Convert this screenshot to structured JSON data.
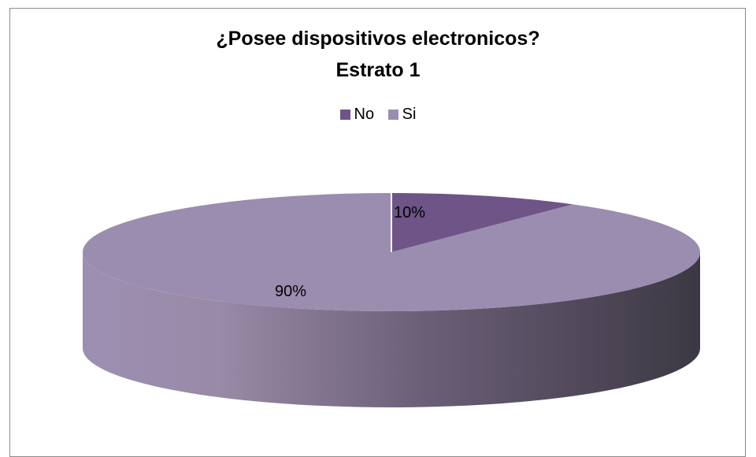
{
  "chart_data": {
    "type": "pie",
    "title": "¿Posee dispositivos electronicos?",
    "subtitle": "Estrato 1",
    "categories": [
      "No",
      "Si"
    ],
    "values": [
      10,
      90
    ],
    "labels": [
      "10%",
      "90%"
    ],
    "legend_position": "top",
    "colors": {
      "No": "#6e5487",
      "Si": "#9b8db0",
      "side_dark": "#3f3a47"
    },
    "style": "3d"
  }
}
